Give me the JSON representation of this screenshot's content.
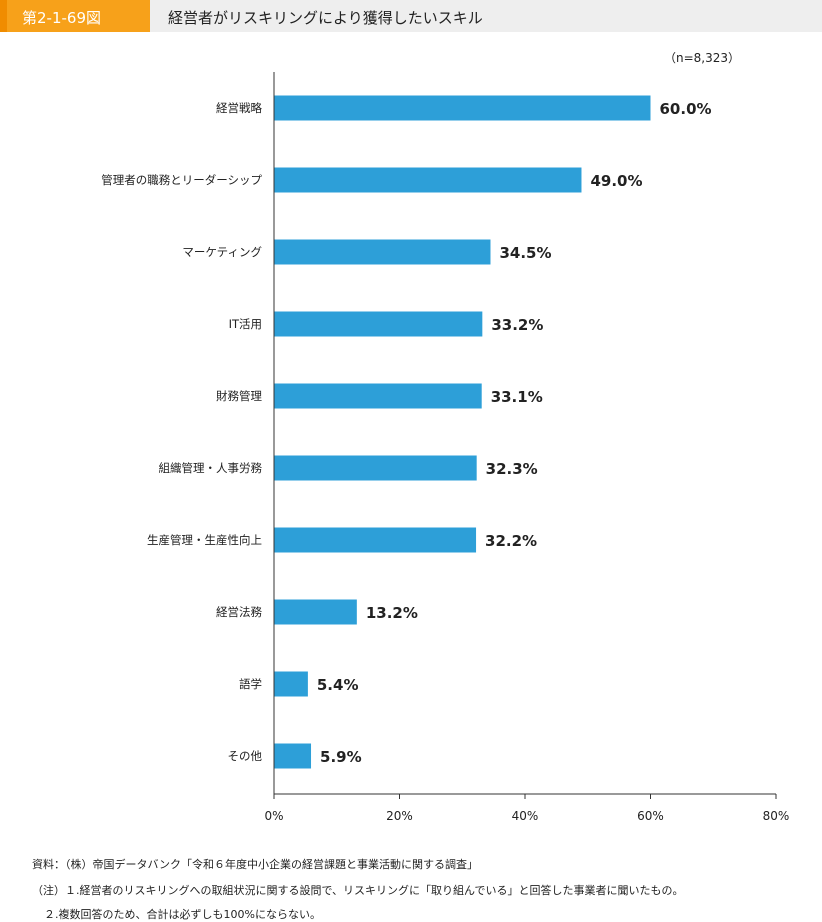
{
  "figure": {
    "number": "第2-1-69図",
    "title": "経営者がリスキリングにより獲得したいスキル"
  },
  "colors": {
    "bar": "#2d9fd8",
    "header_bg": "#eeeeee",
    "figure_tag": "#f7a11a"
  },
  "chart_data": {
    "type": "bar",
    "orientation": "horizontal",
    "note": "（n=8,323）",
    "categories": [
      "経営戦略",
      "管理者の職務とリーダーシップ",
      "マーケティング",
      "IT活用",
      "財務管理",
      "組織管理・人事労務",
      "生産管理・生産性向上",
      "経営法務",
      "語学",
      "その他"
    ],
    "values": [
      60.0,
      49.0,
      34.5,
      33.2,
      33.1,
      32.3,
      32.2,
      13.2,
      5.4,
      5.9
    ],
    "value_labels": [
      "60.0%",
      "49.0%",
      "34.5%",
      "33.2%",
      "33.1%",
      "32.3%",
      "32.2%",
      "13.2%",
      "5.4%",
      "5.9%"
    ],
    "xlim": [
      0,
      80
    ],
    "x_ticks": [
      0,
      20,
      40,
      60,
      80
    ],
    "x_tick_labels": [
      "0%",
      "20%",
      "40%",
      "60%",
      "80%"
    ],
    "grid": false
  },
  "source": {
    "line1": "資料：（株）帝国データバンク「令和６年度中小企業の経営課題と事業活動に関する調査」",
    "line2": "（注）１.経営者のリスキリングへの取組状況に関する設問で、リスキリングに「取り組んでいる」と回答した事業者に聞いたもの。",
    "line3": "２.複数回答のため、合計は必ずしも100%にならない。"
  }
}
